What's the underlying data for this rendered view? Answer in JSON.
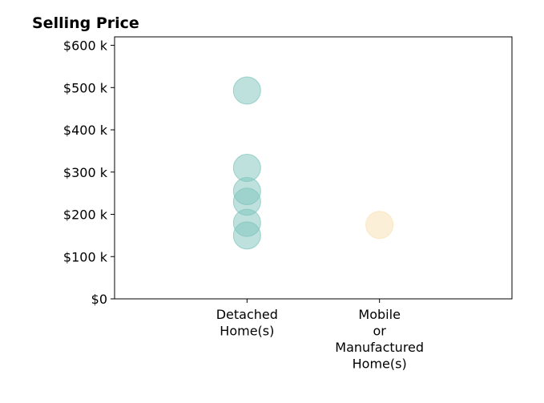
{
  "chart_data": {
    "type": "scatter",
    "title": "Selling Price",
    "xlabel": "",
    "ylabel": "",
    "categories": [
      [
        "Detached",
        "Home(s)"
      ],
      [
        "Mobile",
        "or",
        "Manufactured",
        "Home(s)"
      ]
    ],
    "xlim": [
      -1,
      2
    ],
    "ylim": [
      0,
      620000
    ],
    "y_ticks": [
      {
        "value": 0,
        "label": "$0"
      },
      {
        "value": 100000,
        "label": "$100 k"
      },
      {
        "value": 200000,
        "label": "$200 k"
      },
      {
        "value": 300000,
        "label": "$300 k"
      },
      {
        "value": 400000,
        "label": "$400 k"
      },
      {
        "value": 500000,
        "label": "$500 k"
      },
      {
        "value": 600000,
        "label": "$600 k"
      }
    ],
    "grid": false,
    "series": [
      {
        "category_index": 0,
        "color": "#7ec4bc",
        "values": [
          493000,
          310000,
          255000,
          230000,
          180000,
          150000
        ]
      },
      {
        "category_index": 1,
        "color": "#f9e0b0",
        "values": [
          175000
        ]
      }
    ],
    "marker_opacity": 0.5
  }
}
